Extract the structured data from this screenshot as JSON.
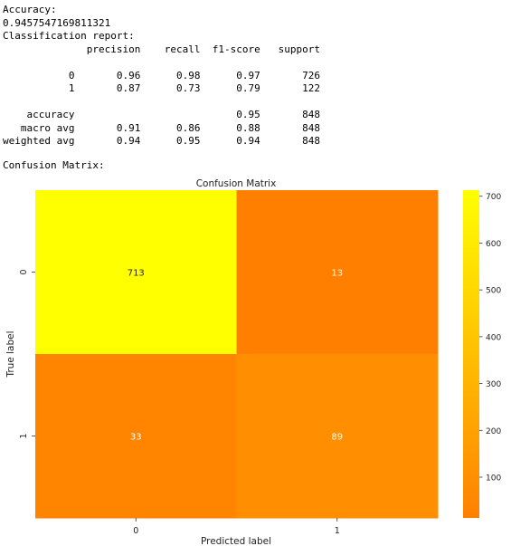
{
  "output": {
    "accuracy_label": "Accuracy:",
    "accuracy_value": "0.9457547169811321",
    "report_label": "Classification report:",
    "report_header": "              precision    recall  f1-score   support",
    "report_rows": [
      "",
      "           0       0.96      0.98      0.97       726",
      "           1       0.87      0.73      0.79       122",
      "",
      "    accuracy                           0.95       848",
      "   macro avg       0.91      0.86      0.88       848",
      "weighted avg       0.94      0.95      0.94       848"
    ],
    "confusion_label": "Confusion Matrix:"
  },
  "chart_data": {
    "type": "heatmap",
    "title": "Confusion Matrix",
    "xlabel": "Predicted label",
    "ylabel": "True label",
    "x_categories": [
      "0",
      "1"
    ],
    "y_categories": [
      "0",
      "1"
    ],
    "values": [
      [
        713,
        13
      ],
      [
        33,
        89
      ]
    ],
    "cell_labels": [
      [
        "713",
        "13"
      ],
      [
        "33",
        "89"
      ]
    ],
    "colormap": "Wistia",
    "colors": {
      "low": "#ff8000",
      "high": "#ffff00"
    },
    "colorbar_ticks": [
      100,
      200,
      300,
      400,
      500,
      600,
      700
    ],
    "colorbar_tick_labels": [
      "100",
      "200",
      "300",
      "400",
      "500",
      "600",
      "700"
    ]
  }
}
